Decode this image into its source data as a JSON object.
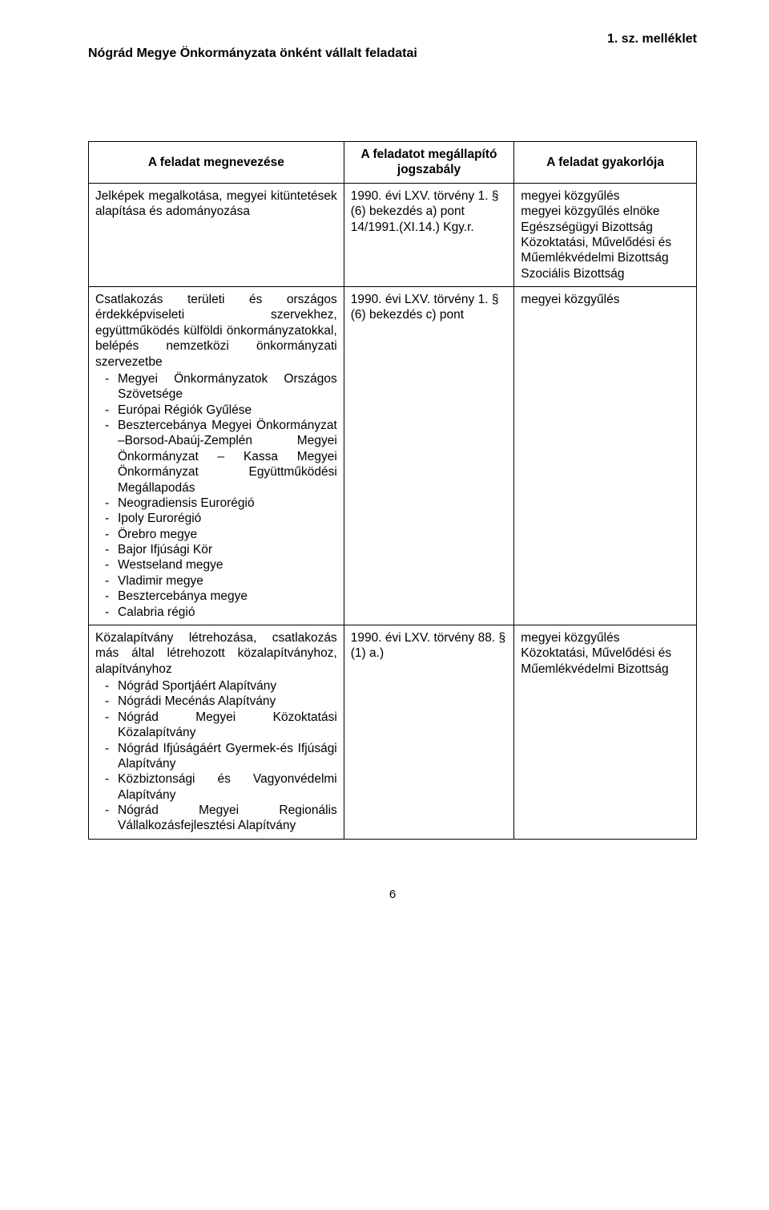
{
  "annex_label": "1. sz. melléklet",
  "doc_title": "Nógrád Megye Önkormányzata önként vállalt feladatai",
  "headers": {
    "col1": "A feladat megnevezése",
    "col2": "A feladatot megállapító jogszabály",
    "col3": "A feladat gyakorlója"
  },
  "row1": {
    "task": "Jelképek megalkotása, megyei kitüntetések alapítása és adományozása",
    "law": "1990. évi LXV. törvény 1. § (6) bekezdés a) pont\n14/1991.(XI.14.) Kgy.r.",
    "actors": [
      "megyei közgyűlés",
      "megyei közgyűlés elnöke",
      "Egészségügyi Bizottság",
      "Közoktatási, Művelődési és Műemlékvédelmi Bizottság",
      "Szociális Bizottság"
    ]
  },
  "row2": {
    "lead": "Csatlakozás területi és országos érdekképviseleti szervekhez, együttműködés külföldi önkormányzatokkal, belépés nemzetközi önkormányzati szervezetbe",
    "items": [
      "Megyei Önkormányzatok Országos Szövetsége",
      "Európai Régiók Gyűlése",
      "Besztercebánya Megyei Önkormányzat –Borsod-Abaúj-Zemplén Megyei Önkormányzat – Kassa Megyei Önkormányzat Együttműködési Megállapodás",
      "Neogradiensis Eurorégió",
      "Ipoly Eurorégió",
      "Örebro megye",
      "Bajor Ifjúsági Kör",
      "Westseland megye",
      "Vladimir megye",
      "Besztercebánya megye",
      "Calabria régió"
    ],
    "law": "1990. évi LXV. törvény 1. § (6) bekezdés c) pont",
    "actor": "megyei közgyűlés"
  },
  "row3": {
    "lead": "Közalapítvány létrehozása, csatlakozás más által létrehozott közalapítványhoz, alapítványhoz",
    "items": [
      "Nógrád Sportjáért Alapítvány",
      "Nógrádi Mecénás Alapítvány",
      "Nógrád Megyei Közoktatási Közalapítvány",
      "Nógrád Ifjúságáért Gyermek-és Ifjúsági Alapítvány",
      "Közbiztonsági és Vagyonvédelmi Alapítvány",
      "Nógrád Megyei Regionális Vállalkozásfejlesztési Alapítvány"
    ],
    "law": "1990. évi LXV. törvény 88. § (1) a.)",
    "actors": [
      "megyei közgyűlés",
      "Közoktatási, Művelődési és Műemlékvédelmi Bizottság"
    ]
  },
  "page_number": "6"
}
